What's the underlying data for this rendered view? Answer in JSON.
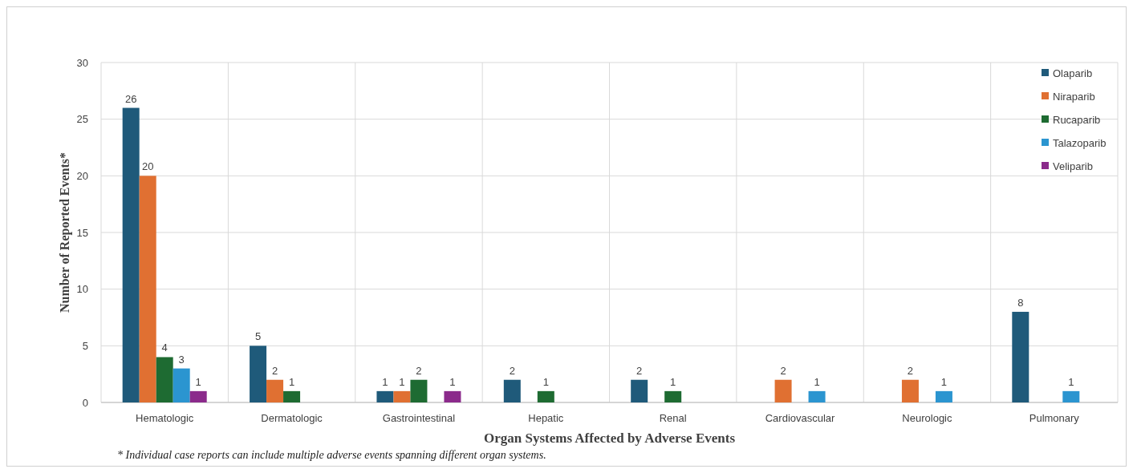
{
  "chart_data": {
    "type": "bar",
    "xlabel": "Organ Systems Affected by Adverse Events",
    "ylabel": "Number of Reported Events*",
    "categories": [
      "Hematologic",
      "Dermatologic",
      "Gastrointestinal",
      "Hepatic",
      "Renal",
      "Cardiovascular",
      "Neurologic",
      "Pulmonary"
    ],
    "series": [
      {
        "name": "Olaparib",
        "color": "#1f5a7a",
        "values": [
          26,
          5,
          1,
          2,
          2,
          null,
          null,
          8
        ]
      },
      {
        "name": "Niraparib",
        "color": "#e07032",
        "values": [
          20,
          2,
          1,
          null,
          null,
          2,
          2,
          null
        ]
      },
      {
        "name": "Rucaparib",
        "color": "#1e6b32",
        "values": [
          4,
          1,
          2,
          1,
          1,
          null,
          null,
          null
        ]
      },
      {
        "name": "Talazoparib",
        "color": "#2b95d0",
        "values": [
          3,
          null,
          null,
          null,
          null,
          1,
          1,
          1
        ]
      },
      {
        "name": "Veliparib",
        "color": "#8b2a8b",
        "values": [
          1,
          null,
          1,
          null,
          null,
          null,
          null,
          null
        ]
      }
    ],
    "ylim": [
      0,
      30
    ],
    "yticks": [
      0,
      5,
      10,
      15,
      20,
      25,
      30
    ],
    "grid": true,
    "legend": "top right",
    "data_labels": true,
    "annotations": [
      "* Individual case reports can include multiple adverse events spanning different organ systems."
    ]
  }
}
